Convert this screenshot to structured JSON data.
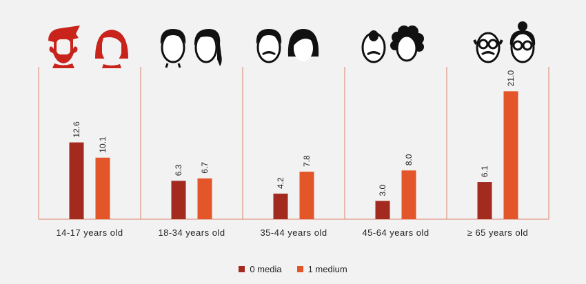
{
  "chart_data": {
    "type": "bar",
    "categories": [
      "14-17 years old",
      "18-34 years old",
      "35-44 years old",
      "45-64 years old",
      "≥ 65 years old"
    ],
    "series": [
      {
        "name": "0 media",
        "values": [
          12.6,
          6.3,
          4.2,
          3.0,
          6.1
        ],
        "color": "#a32a1f"
      },
      {
        "name": "1 medium",
        "values": [
          10.1,
          6.7,
          7.8,
          8.0,
          21.0
        ],
        "color": "#e2562a"
      }
    ],
    "ylim": [
      0,
      25
    ],
    "grid": false,
    "legend_position": "bottom-center",
    "title": "",
    "xlabel": "",
    "ylabel": ""
  },
  "icons": [
    {
      "colors": "red",
      "pair": [
        "teen-boy-face-icon",
        "teen-girl-face-icon"
      ]
    },
    {
      "colors": "black",
      "pair": [
        "young-man-face-icon",
        "young-woman-face-icon"
      ]
    },
    {
      "colors": "black",
      "pair": [
        "mustache-man-face-icon",
        "bob-hair-woman-face-icon"
      ]
    },
    {
      "colors": "black",
      "pair": [
        "balding-man-face-icon",
        "curly-hair-woman-face-icon"
      ]
    },
    {
      "colors": "black",
      "pair": [
        "elderly-man-glasses-icon",
        "elderly-woman-bun-glasses-icon"
      ]
    }
  ],
  "legend": {
    "item0": "0 media",
    "item1": "1 medium"
  },
  "colors": {
    "axis": "#d9826c",
    "dark": "#a32a1f",
    "light": "#e2562a",
    "icon_red": "#c8241c"
  }
}
